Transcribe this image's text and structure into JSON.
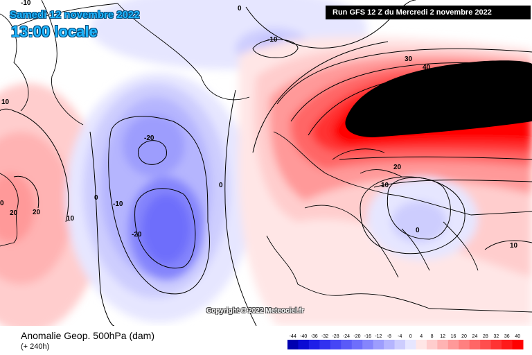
{
  "header": {
    "date": "Samedi 12 novembre 2022",
    "local_time": "13:00 locale",
    "run": "Run GFS 12 Z du Mercredi 2 novembre 2022"
  },
  "copyright": "Copyright © 2022 Meteociel.fr",
  "footer": {
    "title": "Anomalie Geop. 500hPa (dam)",
    "subtitle": "(+ 240h)"
  },
  "legend": {
    "ticks": [
      "-44",
      "-40",
      "-36",
      "-32",
      "-28",
      "-24",
      "-20",
      "-16",
      "-12",
      "-8",
      "-4",
      "0",
      "4",
      "8",
      "12",
      "16",
      "20",
      "24",
      "28",
      "32",
      "36",
      "40"
    ],
    "colors": [
      "#0000b0",
      "#0a0ad4",
      "#1e1ee8",
      "#3232f0",
      "#4646f5",
      "#5a5af8",
      "#6e6efb",
      "#8585fc",
      "#9d9dfd",
      "#b5b5fe",
      "#cdcdfe",
      "#e6e6ff",
      "#ffe6e6",
      "#ffcdcd",
      "#ffb3b3",
      "#ff9999",
      "#ff8080",
      "#ff6666",
      "#ff4d4d",
      "#ff3333",
      "#ff1a1a",
      "#ff0000"
    ]
  },
  "contour_labels": [
    "-10",
    "0",
    "-10",
    "-20",
    "-10",
    "-20",
    "0",
    "10",
    "20",
    "30",
    "40",
    "0",
    "20",
    "10",
    "10",
    "20",
    "10",
    "0",
    "0"
  ],
  "colors": {
    "header_text": "#1fb6ff",
    "strong_positive": "#ff0000",
    "extreme_positive": "#000000",
    "negative": "#6e6efb"
  }
}
